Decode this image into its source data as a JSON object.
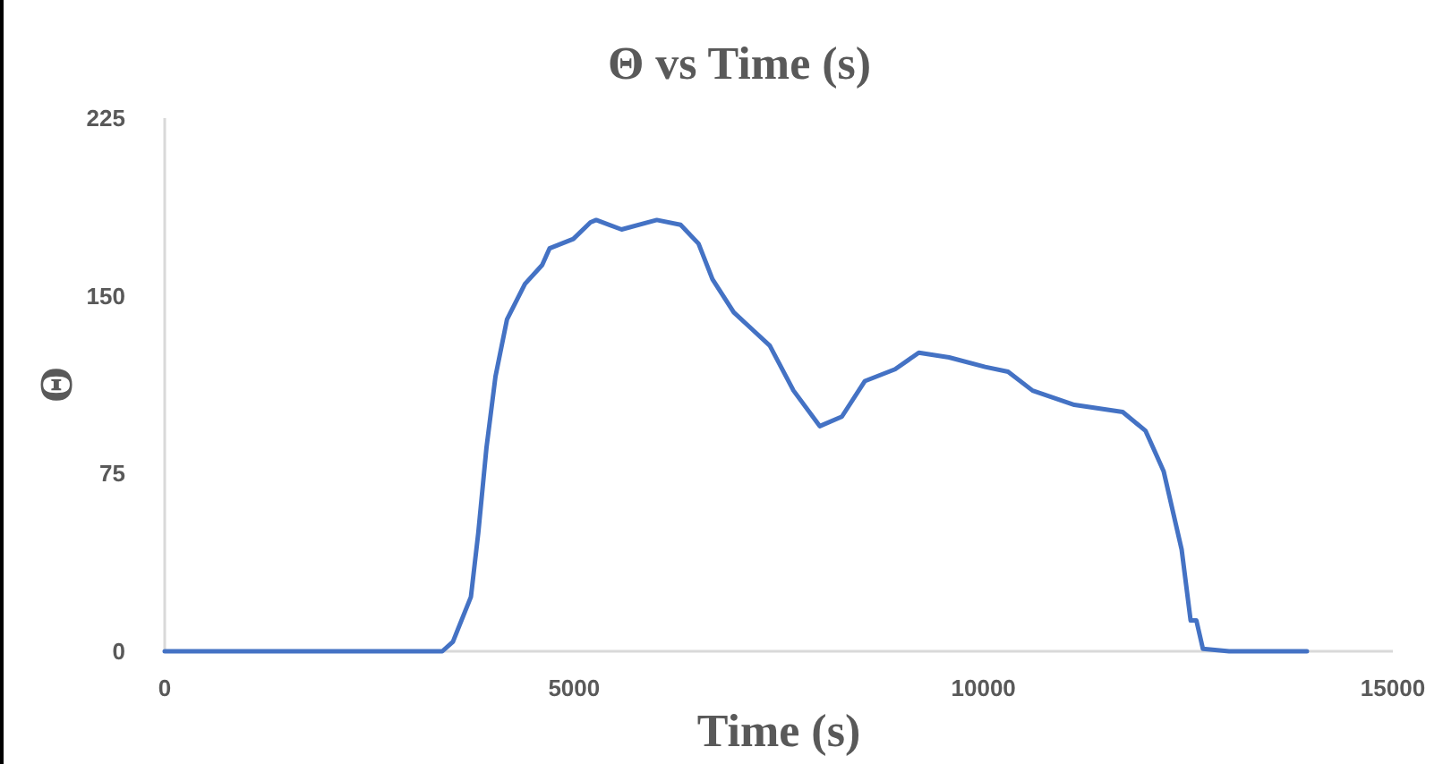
{
  "chart_data": {
    "type": "line",
    "title": "Θ vs Time (s)",
    "xlabel": "Time (s)",
    "ylabel": "Θ",
    "xlim": [
      0,
      15000
    ],
    "xticks": [
      0,
      5000,
      10000,
      15000
    ],
    "ylim": [
      0,
      225
    ],
    "yticks": [
      0,
      75,
      150,
      225
    ],
    "grid": false,
    "marker": "none",
    "line_style": "solid",
    "series": [
      {
        "color": "#4472c4",
        "x": [
          0,
          1000,
          2000,
          3000,
          3390,
          3520,
          3740,
          3830,
          3930,
          4040,
          4180,
          4400,
          4610,
          4700,
          4990,
          5200,
          5270,
          5580,
          6010,
          6300,
          6520,
          6690,
          6950,
          7170,
          7390,
          7680,
          8000,
          8270,
          8550,
          8920,
          9210,
          9580,
          10020,
          10300,
          10600,
          11110,
          11700,
          11980,
          12200,
          12420,
          12530,
          12600,
          12680,
          13000,
          13500,
          13950
        ],
        "values": [
          0,
          0,
          0,
          0,
          0,
          4,
          23,
          50,
          86,
          116,
          140,
          155,
          163,
          170,
          174,
          181,
          182,
          178,
          182,
          180,
          172,
          157,
          143,
          136,
          129,
          110,
          95,
          99,
          114,
          119,
          126,
          124,
          120,
          118,
          110,
          104,
          101,
          93,
          76,
          43,
          13,
          13,
          1,
          0,
          0,
          0
        ]
      }
    ]
  }
}
